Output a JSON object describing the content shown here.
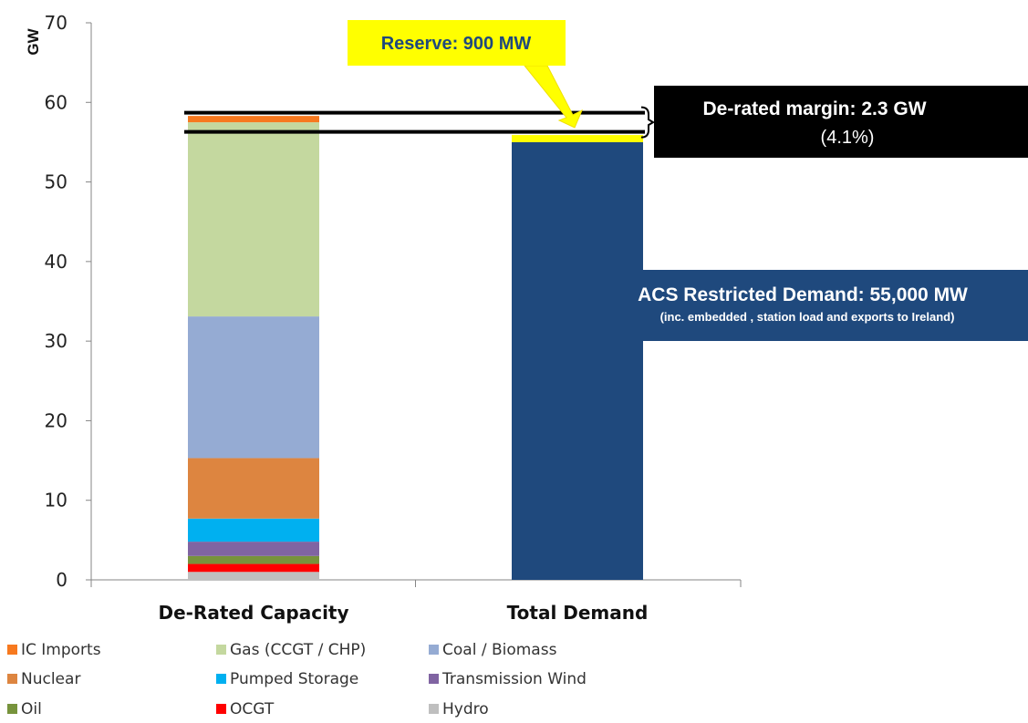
{
  "chart_data": {
    "type": "bar",
    "stacked": true,
    "categories": [
      "De-Rated Capacity",
      "Total Demand"
    ],
    "ylabel": "GW",
    "ylim": [
      0,
      70
    ],
    "yticks": [
      0,
      10,
      20,
      30,
      40,
      50,
      60,
      70
    ],
    "grid": false,
    "legend_position": "bottom",
    "series": [
      {
        "name": "Hydro",
        "color": "#bfbfbf",
        "values": [
          1.0,
          null
        ]
      },
      {
        "name": "OCGT",
        "color": "#ff0000",
        "values": [
          1.0,
          null
        ]
      },
      {
        "name": "Oil",
        "color": "#77933c",
        "values": [
          1.0,
          null
        ]
      },
      {
        "name": "Transmission Wind",
        "color": "#8064a2",
        "values": [
          1.8,
          null
        ]
      },
      {
        "name": "Pumped Storage",
        "color": "#00b0f0",
        "values": [
          2.9,
          null
        ]
      },
      {
        "name": "Nuclear",
        "color": "#dd8540",
        "values": [
          7.6,
          null
        ]
      },
      {
        "name": "Coal / Biomass",
        "color": "#95abd3",
        "values": [
          17.8,
          null
        ]
      },
      {
        "name": "Gas (CCGT / CHP)",
        "color": "#c4d89f",
        "values": [
          24.4,
          null
        ]
      },
      {
        "name": "IC Imports",
        "color": "#f7791f",
        "values": [
          0.8,
          null
        ]
      }
    ],
    "extra_marks": {
      "demand_bar": {
        "value": 55.0,
        "color": "#1f497d"
      },
      "reserve_band": {
        "value": 0.9,
        "color": "#ffff00"
      },
      "margin_upper_line": 58.7,
      "margin_lower_line": 56.3
    },
    "legend_order": [
      "IC Imports",
      "Gas (CCGT / CHP)",
      "Coal / Biomass",
      "Nuclear",
      "Pumped Storage",
      "Transmission Wind",
      "Oil",
      "OCGT",
      "Hydro"
    ],
    "annotations": {
      "reserve": "Reserve: 900 MW",
      "margin_title": "De-rated margin: 2.3 GW",
      "margin_sub": "(4.1%)",
      "demand_title": "ACS Restricted Demand: 55,000 MW",
      "demand_sub": "(inc. embedded , station load and exports to Ireland)"
    }
  }
}
